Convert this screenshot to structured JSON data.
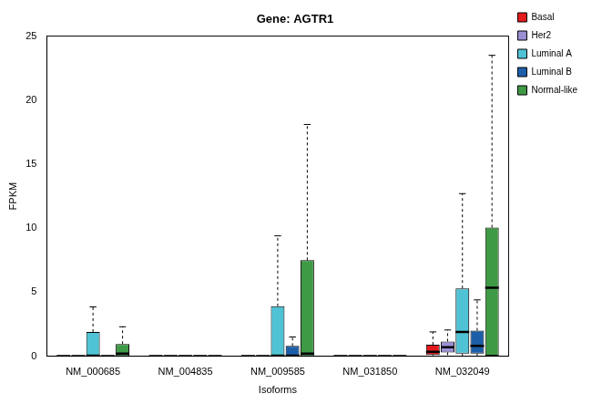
{
  "chart_data": {
    "type": "boxplot",
    "title": "Gene: AGTR1",
    "x_label": "Isoforms",
    "y_label": "FPKM",
    "categories": [
      "NM_000685",
      "NM_004835",
      "NM_009585",
      "NM_031850",
      "NM_032049"
    ],
    "series": [
      {
        "name": "Basal",
        "color": "#e31a1c",
        "values": [
          {
            "min": 0,
            "q1": 0,
            "median": 0,
            "q3": 0,
            "max": 0
          },
          {
            "min": 0,
            "q1": 0,
            "median": 0,
            "q3": 0,
            "max": 0
          },
          {
            "min": 0,
            "q1": 0,
            "median": 0,
            "q3": 0,
            "max": 0
          },
          {
            "min": 0,
            "q1": 0,
            "median": 0,
            "q3": 0,
            "max": 0
          },
          {
            "min": 0,
            "q1": 0.1,
            "median": 0.35,
            "q3": 0.9,
            "max": 1.9
          }
        ]
      },
      {
        "name": "Her2",
        "color": "#9b8fd6",
        "values": [
          {
            "min": 0,
            "q1": 0,
            "median": 0,
            "q3": 0,
            "max": 0
          },
          {
            "min": 0,
            "q1": 0,
            "median": 0,
            "q3": 0,
            "max": 0
          },
          {
            "min": 0,
            "q1": 0,
            "median": 0,
            "q3": 0,
            "max": 0
          },
          {
            "min": 0,
            "q1": 0,
            "median": 0,
            "q3": 0,
            "max": 0
          },
          {
            "min": 0,
            "q1": 0.3,
            "median": 0.7,
            "q3": 1.15,
            "max": 2.05
          }
        ]
      },
      {
        "name": "Luminal A",
        "color": "#4fc3d5",
        "values": [
          {
            "min": 0,
            "q1": 0,
            "median": 0.05,
            "q3": 1.9,
            "max": 3.85
          },
          {
            "min": 0,
            "q1": 0,
            "median": 0,
            "q3": 0,
            "max": 0
          },
          {
            "min": 0,
            "q1": 0,
            "median": 0.05,
            "q3": 3.9,
            "max": 9.4
          },
          {
            "min": 0,
            "q1": 0,
            "median": 0,
            "q3": 0,
            "max": 0
          },
          {
            "min": 0,
            "q1": 0.2,
            "median": 1.9,
            "q3": 5.3,
            "max": 12.7
          }
        ]
      },
      {
        "name": "Luminal B",
        "color": "#1c5ea8",
        "values": [
          {
            "min": 0,
            "q1": 0,
            "median": 0,
            "q3": 0,
            "max": 0
          },
          {
            "min": 0,
            "q1": 0,
            "median": 0,
            "q3": 0,
            "max": 0
          },
          {
            "min": 0,
            "q1": 0,
            "median": 0.05,
            "q3": 0.8,
            "max": 1.5
          },
          {
            "min": 0,
            "q1": 0,
            "median": 0,
            "q3": 0,
            "max": 0
          },
          {
            "min": 0,
            "q1": 0.2,
            "median": 0.8,
            "q3": 2.0,
            "max": 4.4
          }
        ]
      },
      {
        "name": "Normal-like",
        "color": "#3f9a45",
        "values": [
          {
            "min": 0,
            "q1": 0,
            "median": 0.2,
            "q3": 0.95,
            "max": 2.3
          },
          {
            "min": 0,
            "q1": 0,
            "median": 0,
            "q3": 0,
            "max": 0
          },
          {
            "min": 0,
            "q1": 0,
            "median": 0.2,
            "q3": 7.5,
            "max": 18.1
          },
          {
            "min": 0,
            "q1": 0,
            "median": 0,
            "q3": 0,
            "max": 0
          },
          {
            "min": 0,
            "q1": 0.05,
            "median": 5.35,
            "q3": 10.05,
            "max": 23.5
          }
        ]
      }
    ],
    "ylim": [
      0,
      25
    ],
    "yticks": [
      0,
      5,
      10,
      15,
      20,
      25
    ],
    "grid": false,
    "legend": "right"
  }
}
